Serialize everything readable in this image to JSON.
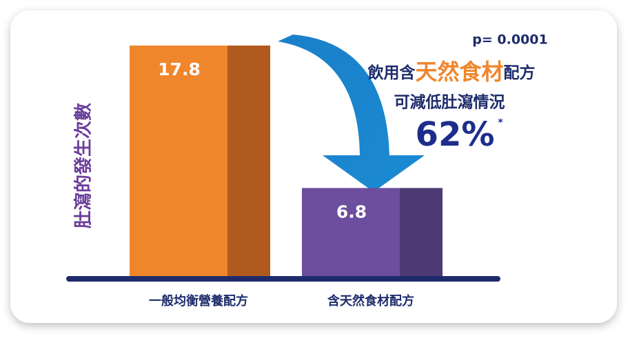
{
  "chart_data": {
    "type": "bar",
    "y_label": "肚瀉的發生次數",
    "categories": [
      "一般均衡營養配方",
      "含天然食材配方"
    ],
    "values": [
      17.8,
      6.8
    ],
    "colors": [
      "#f0862c",
      "#6c4d9e"
    ],
    "side_colors": [
      "#b05a1f",
      "#4d3a74"
    ],
    "annotations": {
      "p_value": "p= 0.0001",
      "headline": [
        "飲用含",
        "天然食材",
        "配方"
      ],
      "subline": "可減低肚瀉情況",
      "reduction": "62%",
      "footnote_mark": "*"
    }
  }
}
